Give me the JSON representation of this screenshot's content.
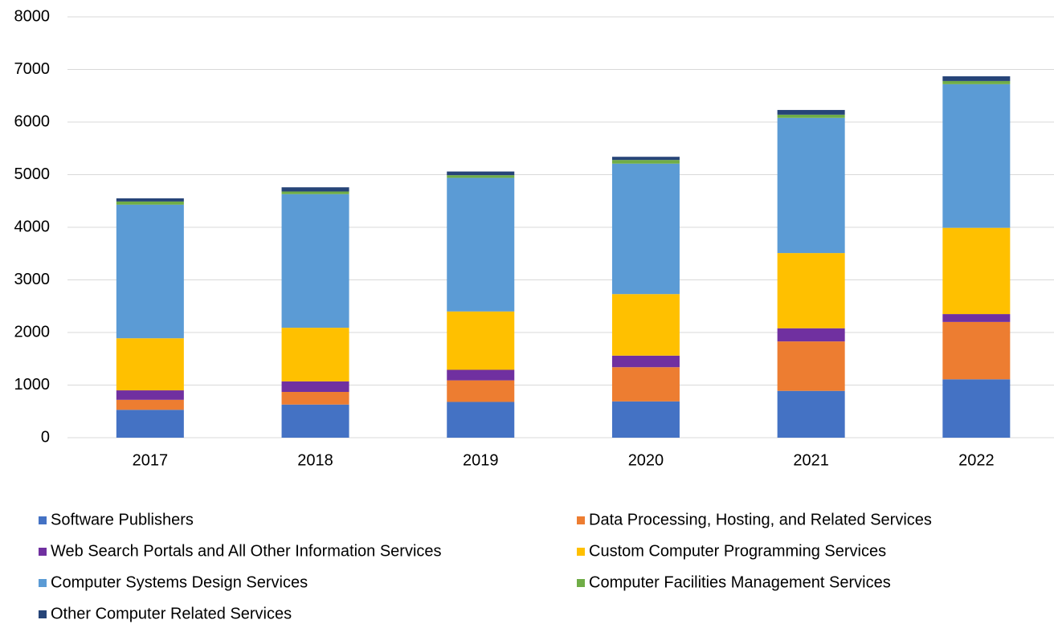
{
  "chart_data": {
    "type": "stacked_bar",
    "categories": [
      "2017",
      "2018",
      "2019",
      "2020",
      "2021",
      "2022"
    ],
    "series": [
      {
        "name": "Software Publishers",
        "color": "#4472c4",
        "values": [
          530,
          630,
          680,
          690,
          890,
          1110
        ]
      },
      {
        "name": "Data Processing, Hosting, and Related Services",
        "color": "#ed7d31",
        "values": [
          190,
          240,
          410,
          650,
          940,
          1090
        ]
      },
      {
        "name": "Web Search Portals and All Other Information Services",
        "color": "#7030a0",
        "values": [
          180,
          200,
          200,
          220,
          250,
          150
        ]
      },
      {
        "name": "Custom Computer Programming Services",
        "color": "#ffc000",
        "values": [
          990,
          1020,
          1110,
          1170,
          1430,
          1640
        ]
      },
      {
        "name": "Computer Systems Design Services",
        "color": "#5b9bd5",
        "values": [
          2540,
          2540,
          2540,
          2480,
          2570,
          2730
        ]
      },
      {
        "name": "Computer Facilities Management Services",
        "color": "#70ad47",
        "values": [
          60,
          50,
          50,
          70,
          60,
          60
        ]
      },
      {
        "name": "Other Computer Related Services",
        "color": "#264478",
        "values": [
          60,
          80,
          70,
          60,
          90,
          90
        ]
      }
    ],
    "ylim": [
      0,
      8000
    ],
    "yticks": [
      0,
      1000,
      2000,
      3000,
      4000,
      5000,
      6000,
      7000,
      8000
    ],
    "grid": true,
    "legend": "bottom"
  }
}
